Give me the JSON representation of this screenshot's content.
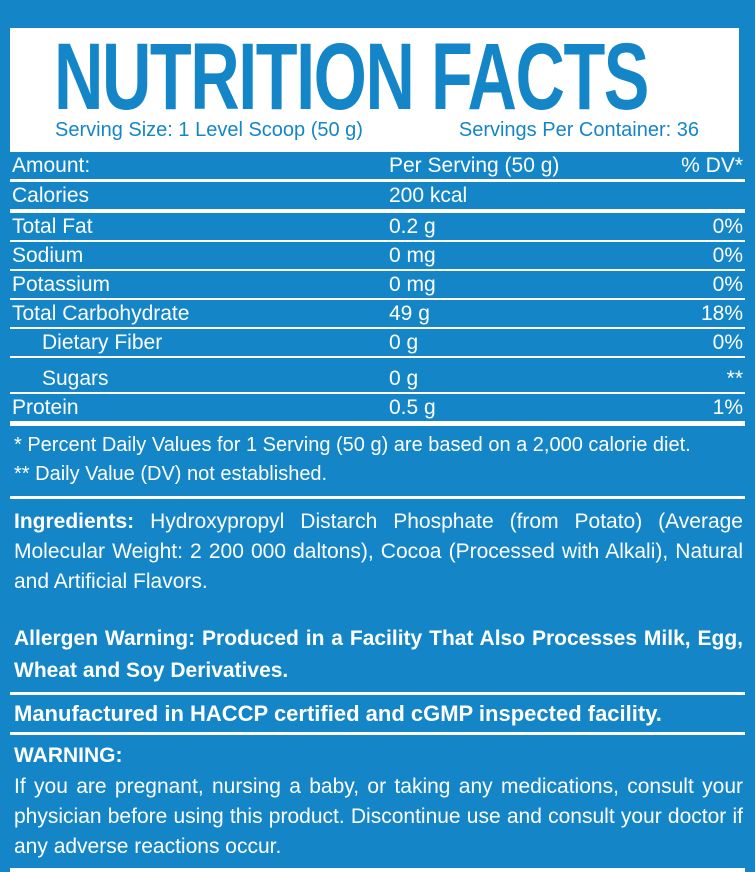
{
  "colors": {
    "label_blue": "#1486c8",
    "panel_white": "#ffffff"
  },
  "header": {
    "title": "NUTRITION FACTS",
    "serving_size": "Serving Size: 1 Level Scoop (50 g)",
    "servings_per_container": "Servings Per Container: 36"
  },
  "facts_table": {
    "columns": {
      "label": "Amount:",
      "per_serving": "Per Serving (50 g)",
      "daily_value": "% DV*"
    },
    "rows": [
      {
        "label": "Calories",
        "amount": "200 kcal",
        "dv": ""
      },
      {
        "label": "Total Fat",
        "amount": "0.2 g",
        "dv": "0%"
      },
      {
        "label": "Sodium",
        "amount": "0 mg",
        "dv": "0%"
      },
      {
        "label": "Potassium",
        "amount": "0 mg",
        "dv": "0%"
      },
      {
        "label": "Total Carbohydrate",
        "amount": "49 g",
        "dv": "18%"
      },
      {
        "label": "Dietary Fiber",
        "amount": "0 g",
        "dv": "0%"
      },
      {
        "label": "Sugars",
        "amount": "0 g",
        "dv": "**"
      },
      {
        "label": "Protein",
        "amount": "0.5 g",
        "dv": "1%"
      }
    ]
  },
  "footnotes": {
    "daily_values": "* Percent Daily Values for 1 Serving (50 g) are based on a 2,000 calorie diet.",
    "not_established": "** Daily Value (DV) not established."
  },
  "ingredients": {
    "label": "Ingredients:",
    "text": "Hydroxypropyl Distarch Phosphate (from Potato) (Average Molecular Weight: 2 200 000 daltons), Cocoa (Processed with Alkali), Natural and Artificial Flavors."
  },
  "allergen_warning": {
    "label": "Allergen Warning:",
    "text": "Produced in a Facility That Also Processes Milk, Egg, Wheat and Soy Derivatives."
  },
  "manufactured": "Manufactured in HACCP certified and cGMP inspected facility.",
  "warning": {
    "title": "WARNING:",
    "text": "If you are pregnant, nursing a baby, or taking any medications, consult your physician before using this product. Discontinue use and consult your doctor if any adverse reactions occur."
  }
}
